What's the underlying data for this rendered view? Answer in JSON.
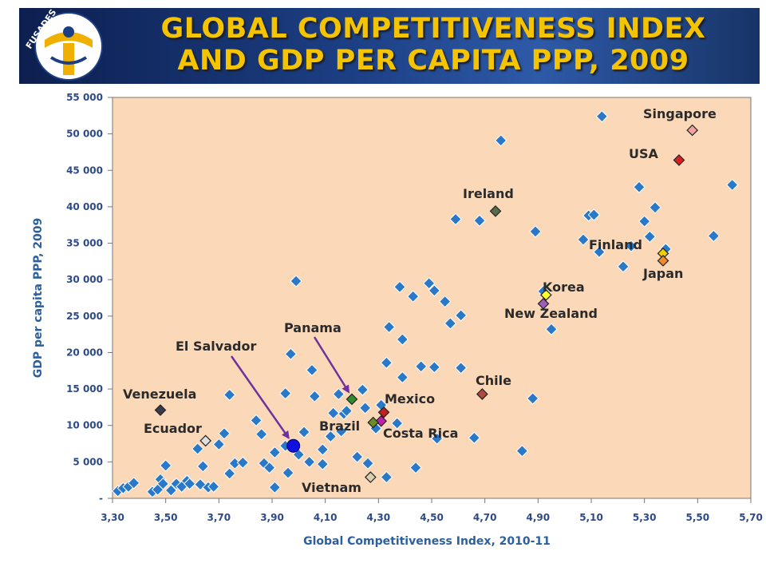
{
  "header": {
    "title_line1": "GLOBAL COMPETITIVENESS INDEX",
    "title_line2": "AND GDP PER CAPITA PPP, 2009",
    "logo_text": "FUSADES"
  },
  "colors": {
    "header_bg": "#1c3f84",
    "title": "#f5c400",
    "plot_bg": "#fad8b8",
    "marker": "#2a78c8",
    "arrow": "#7030a0"
  },
  "chart_data": {
    "type": "scatter",
    "title": "GLOBAL COMPETITIVENESS INDEX AND GDP PER CAPITA PPP, 2009",
    "xlabel": "Global Competitiveness Index, 2010-11",
    "ylabel": "GDP per capita PPP, 2009",
    "xlim": [
      3.3,
      5.7
    ],
    "ylim": [
      0,
      55000
    ],
    "grid": false,
    "x_ticks": [
      "3,30",
      "3,50",
      "3,70",
      "3,90",
      "4,10",
      "4,30",
      "4,50",
      "4,70",
      "4,90",
      "5,10",
      "5,30",
      "5,50",
      "5,70"
    ],
    "y_ticks": [
      "-",
      "5 000",
      "10 000",
      "15 000",
      "20 000",
      "25 000",
      "30 000",
      "35 000",
      "40 000",
      "45 000",
      "50 000",
      "55 000"
    ],
    "points": [
      [
        3.32,
        1000
      ],
      [
        3.34,
        1400
      ],
      [
        3.36,
        1600
      ],
      [
        3.38,
        2100
      ],
      [
        3.45,
        900
      ],
      [
        3.47,
        1200
      ],
      [
        3.48,
        2600
      ],
      [
        3.49,
        2000
      ],
      [
        3.5,
        4500
      ],
      [
        3.52,
        1100
      ],
      [
        3.54,
        2000
      ],
      [
        3.56,
        1600
      ],
      [
        3.58,
        2400
      ],
      [
        3.59,
        2000
      ],
      [
        3.62,
        6800
      ],
      [
        3.64,
        4400
      ],
      [
        3.63,
        1900
      ],
      [
        3.66,
        1500
      ],
      [
        3.68,
        1600
      ],
      [
        3.7,
        7400
      ],
      [
        3.72,
        8900
      ],
      [
        3.74,
        14200
      ],
      [
        3.74,
        3400
      ],
      [
        3.76,
        4800
      ],
      [
        3.79,
        4900
      ],
      [
        3.84,
        10700
      ],
      [
        3.86,
        8800
      ],
      [
        3.87,
        4800
      ],
      [
        3.89,
        4200
      ],
      [
        3.91,
        1500
      ],
      [
        3.91,
        6300
      ],
      [
        3.95,
        14400
      ],
      [
        3.95,
        7200
      ],
      [
        3.97,
        19800
      ],
      [
        3.96,
        3500
      ],
      [
        3.99,
        29800
      ],
      [
        4.0,
        6000
      ],
      [
        4.02,
        9100
      ],
      [
        4.04,
        5000
      ],
      [
        4.05,
        17600
      ],
      [
        4.06,
        14000
      ],
      [
        4.09,
        4700
      ],
      [
        4.09,
        6700
      ],
      [
        4.12,
        8500
      ],
      [
        4.13,
        11700
      ],
      [
        4.15,
        14300
      ],
      [
        4.16,
        9200
      ],
      [
        4.17,
        11600
      ],
      [
        4.18,
        12000
      ],
      [
        4.22,
        5700
      ],
      [
        4.24,
        14900
      ],
      [
        4.25,
        12400
      ],
      [
        4.26,
        4800
      ],
      [
        4.29,
        9600
      ],
      [
        4.31,
        12800
      ],
      [
        4.33,
        18600
      ],
      [
        4.34,
        23500
      ],
      [
        4.33,
        2900
      ],
      [
        4.37,
        10300
      ],
      [
        4.38,
        29000
      ],
      [
        4.39,
        21800
      ],
      [
        4.39,
        16600
      ],
      [
        4.43,
        27700
      ],
      [
        4.44,
        4200
      ],
      [
        4.46,
        18100
      ],
      [
        4.49,
        29500
      ],
      [
        4.51,
        28500
      ],
      [
        4.51,
        18000
      ],
      [
        4.52,
        8200
      ],
      [
        4.55,
        27000
      ],
      [
        4.57,
        24000
      ],
      [
        4.59,
        38300
      ],
      [
        4.61,
        17900
      ],
      [
        4.61,
        25100
      ],
      [
        4.66,
        8300
      ],
      [
        4.68,
        38100
      ],
      [
        4.76,
        49100
      ],
      [
        4.84,
        6500
      ],
      [
        4.88,
        13700
      ],
      [
        4.89,
        36600
      ],
      [
        4.92,
        28400
      ],
      [
        4.95,
        23200
      ],
      [
        5.07,
        35500
      ],
      [
        5.09,
        38800
      ],
      [
        5.11,
        38900
      ],
      [
        5.13,
        33800
      ],
      [
        5.14,
        52400
      ],
      [
        5.22,
        31800
      ],
      [
        5.25,
        34600
      ],
      [
        5.28,
        42700
      ],
      [
        5.3,
        38000
      ],
      [
        5.32,
        35900
      ],
      [
        5.34,
        39900
      ],
      [
        5.38,
        34200
      ],
      [
        5.56,
        36000
      ],
      [
        5.63,
        43000
      ]
    ],
    "highlighted": [
      {
        "name": "Singapore",
        "x": 5.48,
        "y": 50500,
        "color": "#f2a0a0"
      },
      {
        "name": "USA",
        "x": 5.43,
        "y": 46400,
        "color": "#d42020"
      },
      {
        "name": "Ireland",
        "x": 4.74,
        "y": 39400,
        "color": "#5a6b4a"
      },
      {
        "name": "Finland",
        "x": 5.37,
        "y": 33600,
        "color": "#f0d000"
      },
      {
        "name": "Japan",
        "x": 5.37,
        "y": 32600,
        "color": "#f08a2a"
      },
      {
        "name": "Korea",
        "x": 4.93,
        "y": 27900,
        "color": "#ffff30"
      },
      {
        "name": "New Zealand",
        "x": 4.92,
        "y": 26700,
        "color": "#9f5fb8"
      },
      {
        "name": "Chile",
        "x": 4.69,
        "y": 14300,
        "color": "#b04a40"
      },
      {
        "name": "Panama",
        "x": 4.2,
        "y": 13600,
        "color": "#2e8b2e"
      },
      {
        "name": "Mexico",
        "x": 4.32,
        "y": 11800,
        "color": "#c02020"
      },
      {
        "name": "Costa Rica",
        "x": 4.31,
        "y": 10600,
        "color": "#c020b0"
      },
      {
        "name": "Brazil",
        "x": 4.28,
        "y": 10400,
        "color": "#6b8e23"
      },
      {
        "name": "Venezuela",
        "x": 3.48,
        "y": 12100,
        "color": "#3a3a4a"
      },
      {
        "name": "Ecuador",
        "x": 3.65,
        "y": 7900,
        "color": "#e0e0e0"
      },
      {
        "name": "Vietnam",
        "x": 4.27,
        "y": 2900,
        "color": "#d8d0b0"
      },
      {
        "name": "El Salvador",
        "x": 3.98,
        "y": 7200,
        "color": "#1010e0",
        "shape": "circle"
      }
    ],
    "labels": {
      "Singapore": "Singapore",
      "USA": "USA",
      "Ireland": "Ireland",
      "Finland": "Finland",
      "Japan": "Japan",
      "Korea": "Korea",
      "New Zealand": "New Zealand",
      "Chile": "Chile",
      "Panama": "Panama",
      "Mexico": "Mexico",
      "Costa Rica": "Costa Rica",
      "Brazil": "Brazil",
      "Venezuela": "Venezuela",
      "Ecuador": "Ecuador",
      "Vietnam": "Vietnam",
      "El Salvador": "El Salvador"
    }
  }
}
